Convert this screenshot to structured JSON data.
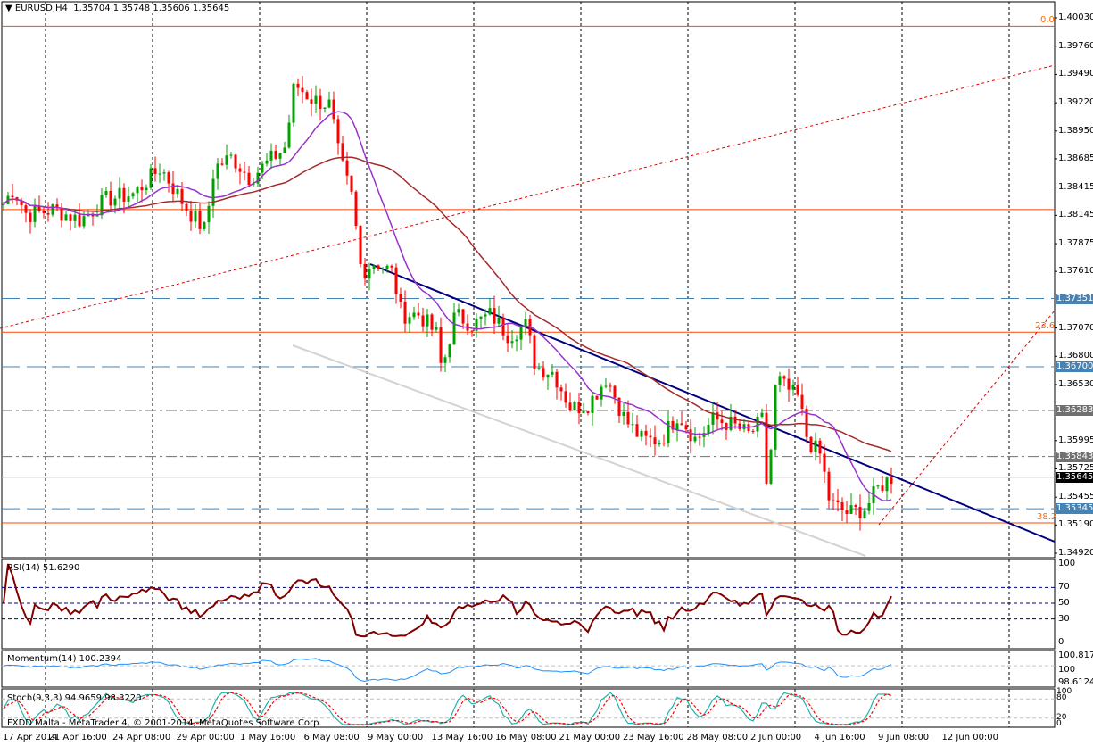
{
  "header": {
    "symbol": "EURUSD,H4",
    "open": "1.35704",
    "high": "1.35748",
    "low": "1.35606",
    "close": "1.35645"
  },
  "price_axis": [
    "1.40030",
    "1.39760",
    "1.39490",
    "1.39220",
    "1.38950",
    "1.38685",
    "1.38415",
    "1.38145",
    "1.37875",
    "1.37610",
    "1.37070",
    "1.36800",
    "1.36530",
    "1.35995",
    "1.35725",
    "1.35455",
    "1.35190",
    "1.34920"
  ],
  "price_tags": [
    {
      "value": "1.37351",
      "color": "#4682b4"
    },
    {
      "value": "1.36700",
      "color": "#4682b4"
    },
    {
      "value": "1.36283",
      "color": "#707070"
    },
    {
      "value": "1.35843",
      "color": "#707070"
    },
    {
      "value": "1.35645",
      "color": "#000000"
    },
    {
      "value": "1.35345",
      "color": "#4682b4"
    }
  ],
  "fibo": [
    {
      "label": "0.0",
      "price": 1.3995
    },
    {
      "label": "23.6",
      "price": 1.3703
    },
    {
      "label": "38.2",
      "price": 1.3521
    }
  ],
  "resistance_price": 1.382,
  "rsi": {
    "label": "RSI(14) 51.6290",
    "axis": [
      "100",
      "70",
      "50",
      "30",
      "0"
    ]
  },
  "momentum": {
    "label": "Momentum(14) 100.2394",
    "axis": [
      "100.8177",
      "100",
      "98.6124"
    ]
  },
  "stoch": {
    "label": "Stoch(9,3,3) 94.9659 98.3220",
    "axis": [
      "100",
      "80",
      "20",
      "0"
    ]
  },
  "footer": "FXDD Malta - MetaTrader 4, © 2001-2014, MetaQuotes Software Corp.",
  "time_axis": [
    "17 Apr 2014",
    "21 Apr 16:00",
    "24 Apr 08:00",
    "29 Apr 00:00",
    "1 May 16:00",
    "6 May 08:00",
    "9 May 00:00",
    "13 May 16:00",
    "16 May 08:00",
    "21 May 00:00",
    "23 May 16:00",
    "28 May 08:00",
    "2 Jun 00:00",
    "4 Jun 16:00",
    "9 Jun 08:00",
    "12 Jun 00:00"
  ],
  "chart_data": {
    "type": "candlestick",
    "price_path": [
      [
        0,
        1.382
      ],
      [
        15,
        1.384
      ],
      [
        30,
        1.3815
      ],
      [
        60,
        1.382
      ],
      [
        90,
        1.381
      ],
      [
        120,
        1.383
      ],
      [
        150,
        1.3835
      ],
      [
        180,
        1.386
      ],
      [
        210,
        1.382
      ],
      [
        230,
        1.38
      ],
      [
        240,
        1.386
      ],
      [
        260,
        1.387
      ],
      [
        280,
        1.385
      ],
      [
        300,
        1.3865
      ],
      [
        320,
        1.388
      ],
      [
        330,
        1.394
      ],
      [
        350,
        1.3925
      ],
      [
        370,
        1.392
      ],
      [
        380,
        1.387
      ],
      [
        395,
        1.383
      ],
      [
        405,
        1.376
      ],
      [
        420,
        1.377
      ],
      [
        440,
        1.376
      ],
      [
        450,
        1.372
      ],
      [
        470,
        1.372
      ],
      [
        490,
        1.37
      ],
      [
        495,
        1.3665
      ],
      [
        510,
        1.372
      ],
      [
        530,
        1.371
      ],
      [
        550,
        1.372
      ],
      [
        570,
        1.37
      ],
      [
        590,
        1.371
      ],
      [
        600,
        1.367
      ],
      [
        620,
        1.3665
      ],
      [
        640,
        1.363
      ],
      [
        660,
        1.3635
      ],
      [
        680,
        1.366
      ],
      [
        700,
        1.362
      ],
      [
        720,
        1.36
      ],
      [
        740,
        1.36
      ],
      [
        760,
        1.3625
      ],
      [
        780,
        1.36
      ],
      [
        800,
        1.362
      ],
      [
        820,
        1.3615
      ],
      [
        840,
        1.3605
      ],
      [
        855,
        1.362
      ],
      [
        860,
        1.3545
      ],
      [
        870,
        1.366
      ],
      [
        880,
        1.365
      ],
      [
        895,
        1.364
      ],
      [
        905,
        1.36
      ],
      [
        920,
        1.3585
      ],
      [
        930,
        1.354
      ],
      [
        950,
        1.353
      ],
      [
        970,
        1.3535
      ],
      [
        985,
        1.3555
      ],
      [
        1000,
        1.3565
      ]
    ],
    "ylim": [
      1.3492,
      1.4003
    ]
  }
}
